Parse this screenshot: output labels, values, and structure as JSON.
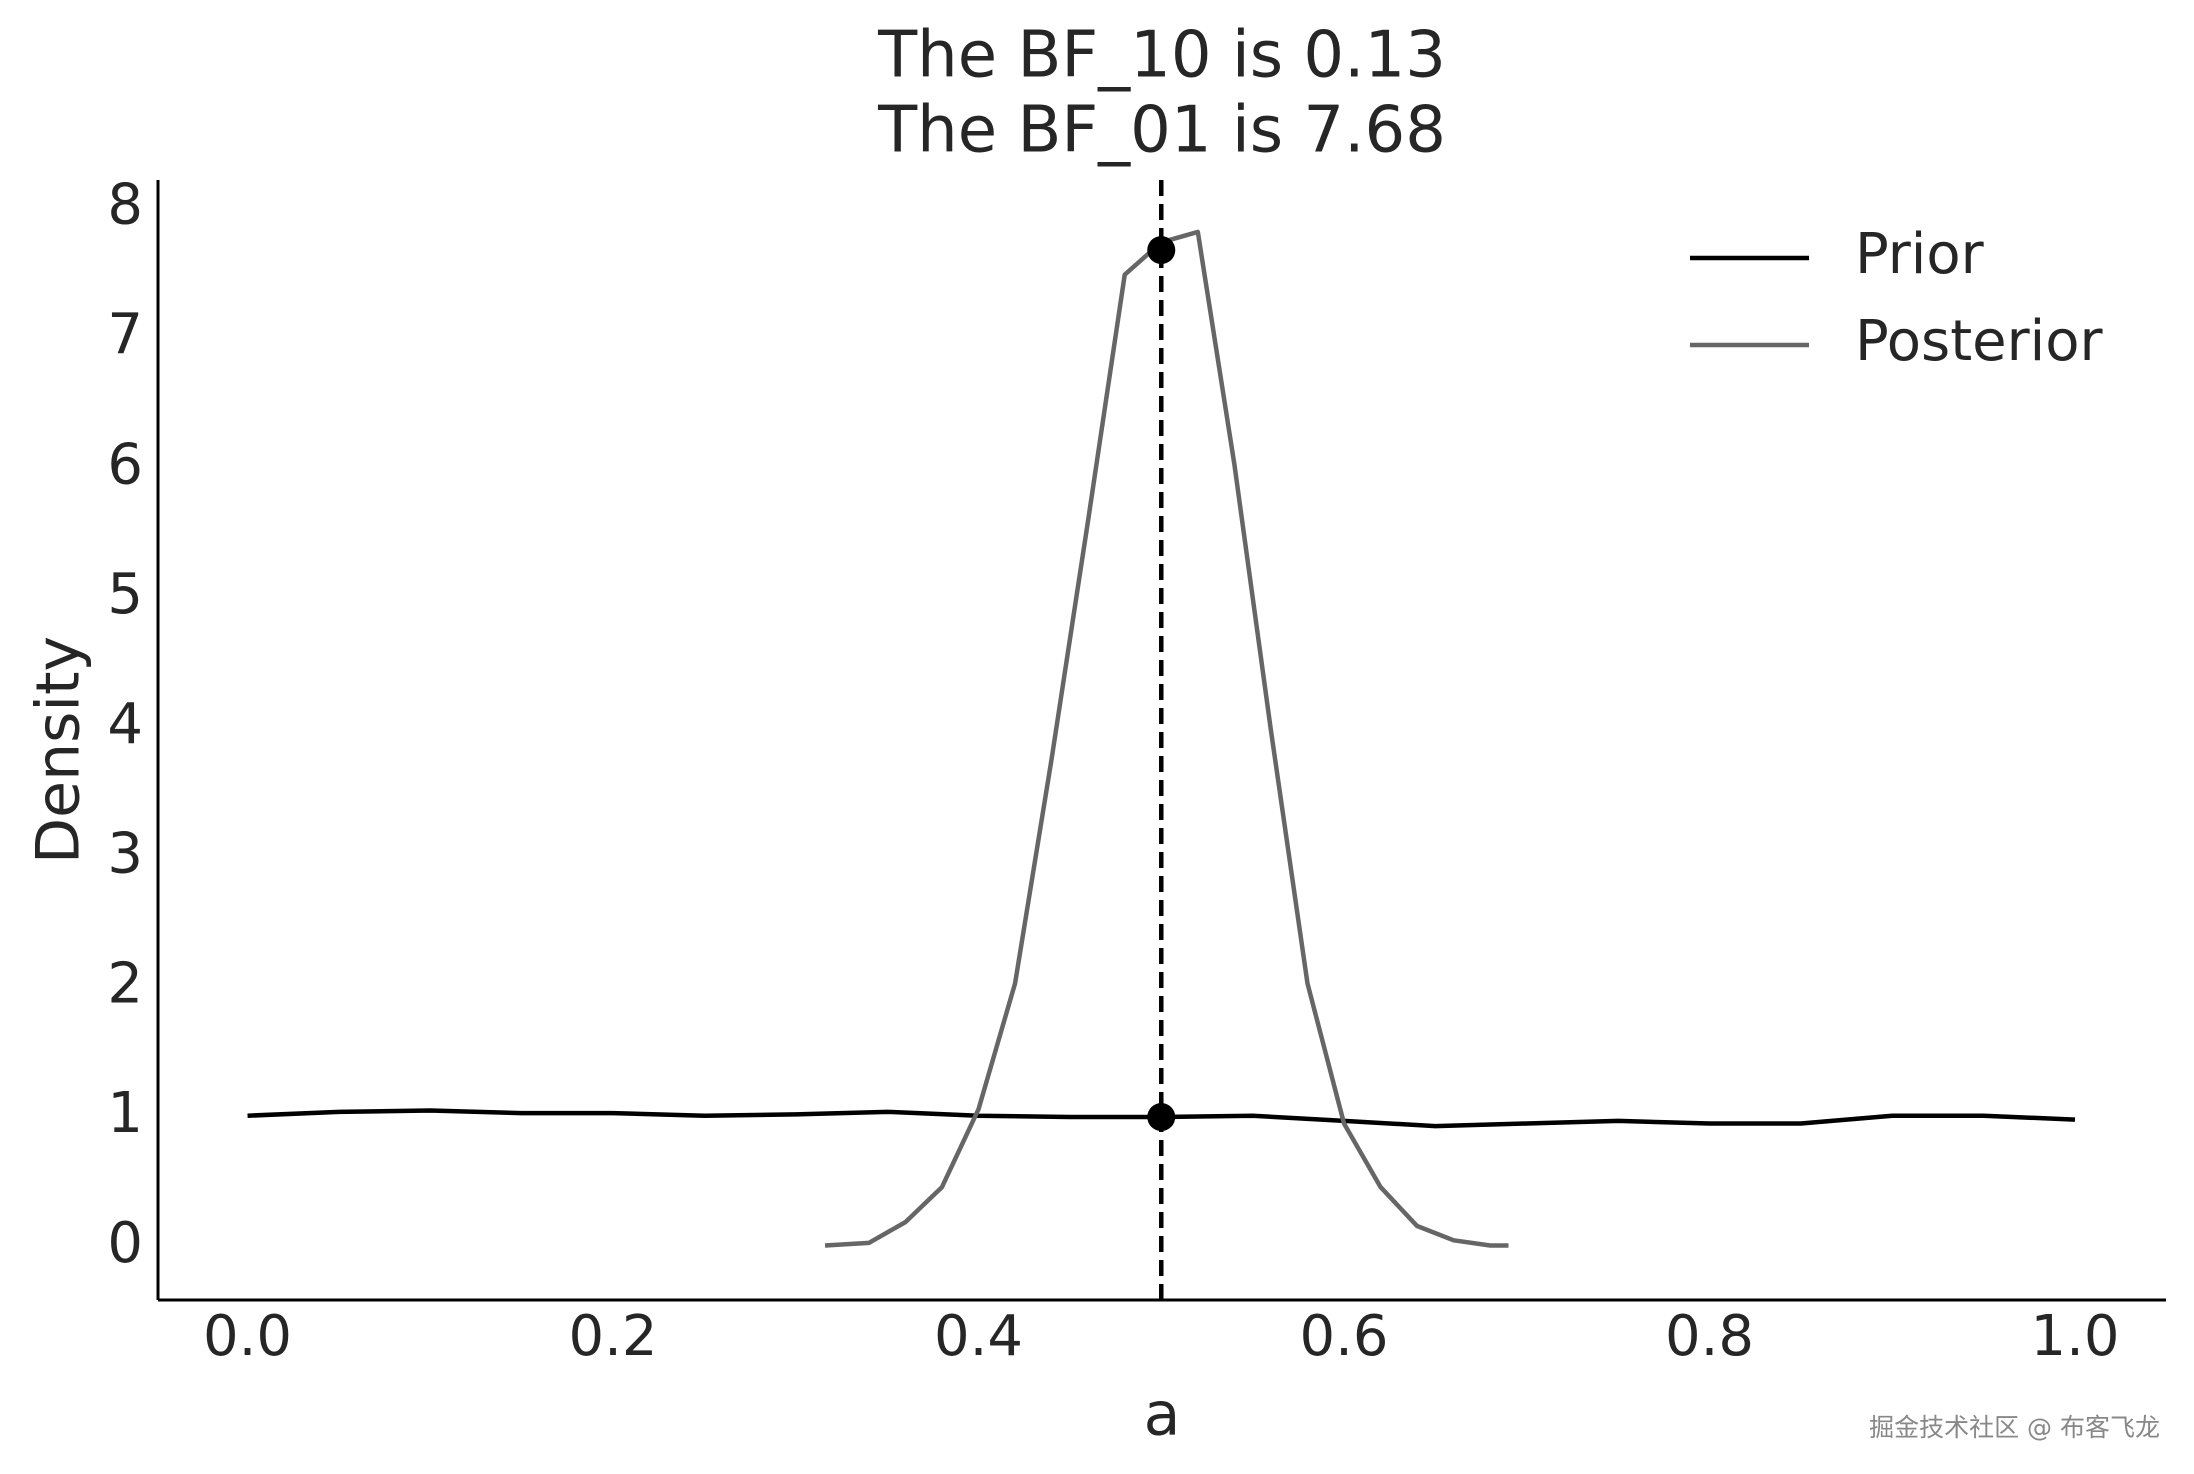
{
  "chart_data": {
    "type": "line",
    "title_lines": [
      "The BF_10 is 0.13",
      "The BF_01 is 7.68"
    ],
    "xlabel": "a",
    "ylabel": "Density",
    "xlim": [
      -0.049,
      1.0498
    ],
    "ylim": [
      -0.41,
      8.22
    ],
    "xticks": [
      {
        "value": 0,
        "label": "0.0"
      },
      {
        "value": 0.2,
        "label": "0.2"
      },
      {
        "value": 0.4,
        "label": "0.4"
      },
      {
        "value": 0.6,
        "label": "0.6"
      },
      {
        "value": 0.8,
        "label": "0.8"
      },
      {
        "value": 1,
        "label": "1.0"
      }
    ],
    "yticks": [
      0,
      1,
      2,
      3,
      4,
      5,
      6,
      7,
      8
    ],
    "grid": false,
    "legend_position": "upper-right",
    "series": [
      {
        "name": "Prior",
        "color": "#000000",
        "x": [
          0,
          0.05,
          0.1,
          0.15,
          0.2,
          0.25,
          0.3,
          0.35,
          0.4,
          0.45,
          0.5,
          0.55,
          0.6,
          0.65,
          0.7,
          0.75,
          0.8,
          0.85,
          0.9,
          0.95,
          1.0
        ],
        "values": [
          1.01,
          1.04,
          1.05,
          1.03,
          1.03,
          1.01,
          1.02,
          1.04,
          1.01,
          1.0,
          1.0,
          1.01,
          0.97,
          0.93,
          0.95,
          0.97,
          0.95,
          0.95,
          1.01,
          1.01,
          0.98
        ]
      },
      {
        "name": "Posterior",
        "color": "#666666",
        "x": [
          0.316,
          0.34,
          0.36,
          0.38,
          0.4,
          0.42,
          0.44,
          0.46,
          0.48,
          0.5,
          0.52,
          0.54,
          0.56,
          0.58,
          0.6,
          0.62,
          0.64,
          0.66,
          0.68,
          0.69
        ],
        "values": [
          0.01,
          0.03,
          0.19,
          0.46,
          1.06,
          2.03,
          3.76,
          5.6,
          7.49,
          7.74,
          7.82,
          6.03,
          3.98,
          2.03,
          0.95,
          0.46,
          0.16,
          0.05,
          0.01,
          0.01
        ]
      }
    ],
    "points": {
      "color": "#000000",
      "x": [
        0.5,
        0.5
      ],
      "values": [
        1.0,
        7.68
      ]
    },
    "vline": {
      "x": 0.5,
      "color": "#000000",
      "dashed": true
    },
    "watermark": "掘金技术社区 @ 布客飞龙"
  }
}
